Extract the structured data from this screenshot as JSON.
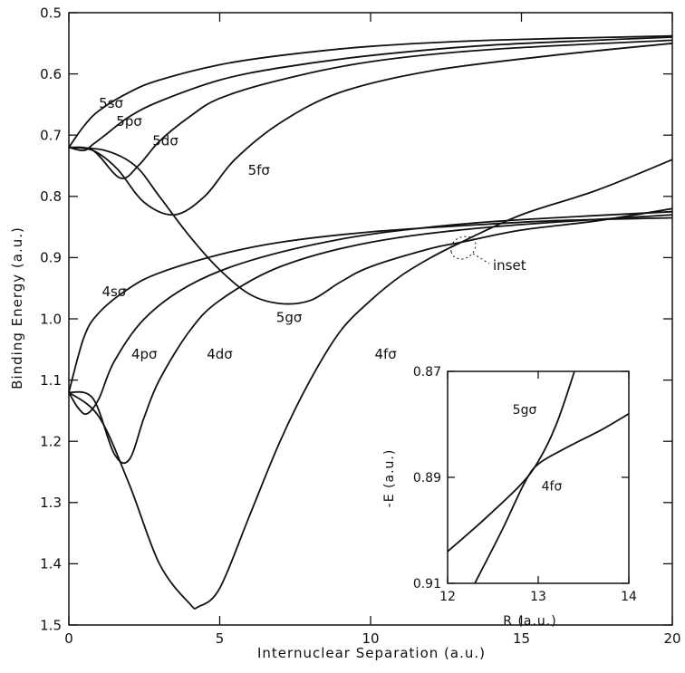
{
  "chart_data": [
    {
      "type": "line",
      "title": "",
      "xlabel": "Internuclear Separation (a.u.)",
      "ylabel": "Binding Energy (a.u.)",
      "xlim": [
        0,
        20
      ],
      "ylim": [
        0.5,
        1.5
      ],
      "y_inverted": true,
      "grid": false,
      "legend": "none (curves labeled inline)",
      "x_ticks": [
        "0",
        "5",
        "10",
        "15",
        "20"
      ],
      "y_ticks": [
        "0.5",
        "0.6",
        "0.7",
        "0.8",
        "0.9",
        "1.0",
        "1.1",
        "1.2",
        "1.3",
        "1.4",
        "1.5"
      ],
      "series": [
        {
          "name": "5sσ",
          "x": [
            0,
            0.5,
            1,
            2,
            3,
            5,
            7,
            10,
            14,
            20
          ],
          "y": [
            0.72,
            0.685,
            0.66,
            0.63,
            0.61,
            0.585,
            0.57,
            0.555,
            0.545,
            0.538
          ]
        },
        {
          "name": "5pσ",
          "x": [
            0,
            0.5,
            0.8,
            1.2,
            2,
            3,
            5,
            7,
            10,
            14,
            20
          ],
          "y": [
            0.72,
            0.725,
            0.715,
            0.7,
            0.67,
            0.645,
            0.61,
            0.59,
            0.57,
            0.553,
            0.54
          ]
        },
        {
          "name": "5dσ",
          "x": [
            0,
            0.8,
            1.7,
            2.3,
            3,
            4,
            5,
            7,
            10,
            14,
            20
          ],
          "y": [
            0.72,
            0.725,
            0.77,
            0.75,
            0.71,
            0.67,
            0.64,
            0.61,
            0.58,
            0.56,
            0.545
          ]
        },
        {
          "name": "5fσ",
          "x": [
            0,
            0.8,
            1.6,
            2.5,
            3.5,
            4.5,
            5.5,
            7,
            9,
            12,
            16,
            20
          ],
          "y": [
            0.72,
            0.725,
            0.755,
            0.81,
            0.83,
            0.8,
            0.74,
            0.68,
            0.63,
            0.595,
            0.57,
            0.55
          ]
        },
        {
          "name": "5gσ",
          "x": [
            0,
            1.2,
            2.2,
            3,
            4,
            5,
            6,
            7,
            8,
            9,
            10,
            12,
            13,
            15,
            17.5,
            20
          ],
          "y": [
            0.72,
            0.725,
            0.75,
            0.8,
            0.865,
            0.92,
            0.96,
            0.975,
            0.97,
            0.94,
            0.915,
            0.885,
            0.875,
            0.855,
            0.84,
            0.82
          ]
        },
        {
          "name": "4sσ",
          "x": [
            0,
            0.5,
            1,
            2,
            3,
            5,
            7,
            10,
            13,
            16,
            20
          ],
          "y": [
            1.12,
            1.03,
            0.99,
            0.95,
            0.925,
            0.895,
            0.875,
            0.858,
            0.848,
            0.84,
            0.835
          ]
        },
        {
          "name": "4pσ",
          "x": [
            0,
            0.3,
            0.6,
            1,
            1.5,
            2.5,
            4,
            6,
            9,
            12,
            15,
            20
          ],
          "y": [
            1.12,
            1.145,
            1.155,
            1.13,
            1.07,
            1.0,
            0.945,
            0.905,
            0.87,
            0.85,
            0.838,
            0.825
          ]
        },
        {
          "name": "4dσ",
          "x": [
            0,
            0.8,
            1.5,
            2,
            2.5,
            3,
            4,
            5,
            7,
            10,
            14,
            20
          ],
          "y": [
            1.12,
            1.13,
            1.22,
            1.23,
            1.16,
            1.1,
            1.02,
            0.97,
            0.915,
            0.875,
            0.85,
            0.83
          ]
        },
        {
          "name": "4fσ",
          "x": [
            0,
            1,
            2,
            3,
            4,
            4.3,
            5,
            6,
            7,
            8,
            9,
            10,
            11,
            12,
            13,
            15,
            17.5,
            20
          ],
          "y": [
            1.12,
            1.16,
            1.27,
            1.4,
            1.465,
            1.47,
            1.44,
            1.32,
            1.2,
            1.1,
            1.02,
            0.97,
            0.93,
            0.9,
            0.875,
            0.83,
            0.79,
            0.74
          ]
        }
      ],
      "annotations": [
        "inset"
      ]
    },
    {
      "type": "line",
      "title": "",
      "xlabel": "R (a.u.)",
      "ylabel": "-E (a.u.)",
      "xlim": [
        12,
        14
      ],
      "ylim": [
        0.87,
        0.91
      ],
      "y_inverted": true,
      "x_ticks": [
        "12",
        "13",
        "14"
      ],
      "y_ticks": [
        "0.87",
        "0.89",
        "0.91"
      ],
      "series": [
        {
          "name": "5gσ",
          "x": [
            12,
            12.4,
            12.8,
            13,
            13.2,
            13.4
          ],
          "y": [
            0.904,
            0.898,
            0.8915,
            0.887,
            0.88,
            0.87
          ]
        },
        {
          "name": "4fσ",
          "x": [
            12.3,
            12.6,
            12.85,
            13,
            13.3,
            13.7,
            14
          ],
          "y": [
            0.91,
            0.9,
            0.891,
            0.8875,
            0.8845,
            0.881,
            0.878
          ]
        }
      ]
    }
  ]
}
